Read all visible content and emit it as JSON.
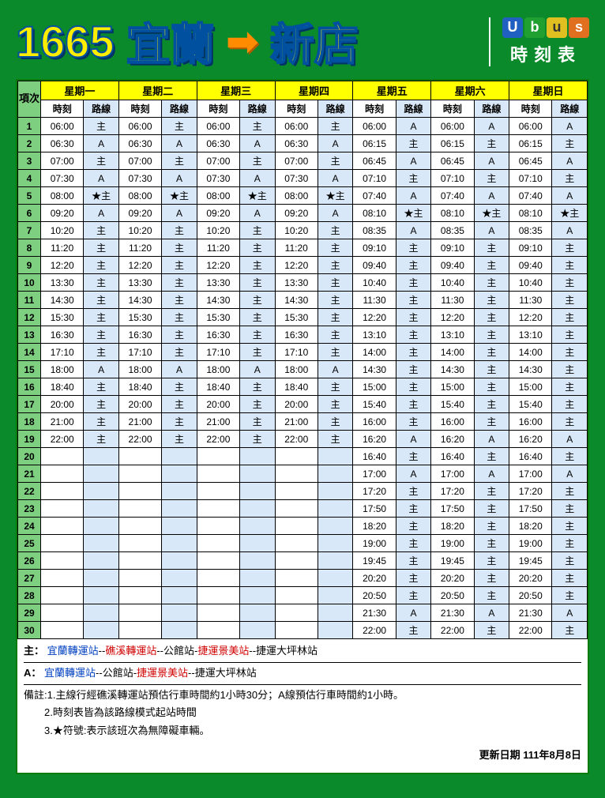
{
  "header": {
    "route_number": "1665",
    "from": "宜蘭",
    "arrow": "➡",
    "to": "新店",
    "logo_letters": [
      "U",
      "b",
      "u",
      "s"
    ],
    "logo_subtitle": "時刻表"
  },
  "table": {
    "index_header": "項次",
    "days": [
      "星期一",
      "星期二",
      "星期三",
      "星期四",
      "星期五",
      "星期六",
      "星期日"
    ],
    "sub_headers": [
      "時刻",
      "路線"
    ],
    "rows": [
      {
        "idx": "1",
        "cells": [
          [
            "06:00",
            "主"
          ],
          [
            "06:00",
            "主"
          ],
          [
            "06:00",
            "主"
          ],
          [
            "06:00",
            "主"
          ],
          [
            "06:00",
            "A"
          ],
          [
            "06:00",
            "A"
          ],
          [
            "06:00",
            "A"
          ]
        ]
      },
      {
        "idx": "2",
        "cells": [
          [
            "06:30",
            "A"
          ],
          [
            "06:30",
            "A"
          ],
          [
            "06:30",
            "A"
          ],
          [
            "06:30",
            "A"
          ],
          [
            "06:15",
            "主"
          ],
          [
            "06:15",
            "主"
          ],
          [
            "06:15",
            "主"
          ]
        ]
      },
      {
        "idx": "3",
        "cells": [
          [
            "07:00",
            "主"
          ],
          [
            "07:00",
            "主"
          ],
          [
            "07:00",
            "主"
          ],
          [
            "07:00",
            "主"
          ],
          [
            "06:45",
            "A"
          ],
          [
            "06:45",
            "A"
          ],
          [
            "06:45",
            "A"
          ]
        ]
      },
      {
        "idx": "4",
        "cells": [
          [
            "07:30",
            "A"
          ],
          [
            "07:30",
            "A"
          ],
          [
            "07:30",
            "A"
          ],
          [
            "07:30",
            "A"
          ],
          [
            "07:10",
            "主"
          ],
          [
            "07:10",
            "主"
          ],
          [
            "07:10",
            "主"
          ]
        ]
      },
      {
        "idx": "5",
        "cells": [
          [
            "08:00",
            "★主"
          ],
          [
            "08:00",
            "★主"
          ],
          [
            "08:00",
            "★主"
          ],
          [
            "08:00",
            "★主"
          ],
          [
            "07:40",
            "A"
          ],
          [
            "07:40",
            "A"
          ],
          [
            "07:40",
            "A"
          ]
        ]
      },
      {
        "idx": "6",
        "cells": [
          [
            "09:20",
            "A"
          ],
          [
            "09:20",
            "A"
          ],
          [
            "09:20",
            "A"
          ],
          [
            "09:20",
            "A"
          ],
          [
            "08:10",
            "★主"
          ],
          [
            "08:10",
            "★主"
          ],
          [
            "08:10",
            "★主"
          ]
        ]
      },
      {
        "idx": "7",
        "cells": [
          [
            "10:20",
            "主"
          ],
          [
            "10:20",
            "主"
          ],
          [
            "10:20",
            "主"
          ],
          [
            "10:20",
            "主"
          ],
          [
            "08:35",
            "A"
          ],
          [
            "08:35",
            "A"
          ],
          [
            "08:35",
            "A"
          ]
        ]
      },
      {
        "idx": "8",
        "cells": [
          [
            "11:20",
            "主"
          ],
          [
            "11:20",
            "主"
          ],
          [
            "11:20",
            "主"
          ],
          [
            "11:20",
            "主"
          ],
          [
            "09:10",
            "主"
          ],
          [
            "09:10",
            "主"
          ],
          [
            "09:10",
            "主"
          ]
        ]
      },
      {
        "idx": "9",
        "cells": [
          [
            "12:20",
            "主"
          ],
          [
            "12:20",
            "主"
          ],
          [
            "12:20",
            "主"
          ],
          [
            "12:20",
            "主"
          ],
          [
            "09:40",
            "主"
          ],
          [
            "09:40",
            "主"
          ],
          [
            "09:40",
            "主"
          ]
        ]
      },
      {
        "idx": "10",
        "cells": [
          [
            "13:30",
            "主"
          ],
          [
            "13:30",
            "主"
          ],
          [
            "13:30",
            "主"
          ],
          [
            "13:30",
            "主"
          ],
          [
            "10:40",
            "主"
          ],
          [
            "10:40",
            "主"
          ],
          [
            "10:40",
            "主"
          ]
        ]
      },
      {
        "idx": "11",
        "cells": [
          [
            "14:30",
            "主"
          ],
          [
            "14:30",
            "主"
          ],
          [
            "14:30",
            "主"
          ],
          [
            "14:30",
            "主"
          ],
          [
            "11:30",
            "主"
          ],
          [
            "11:30",
            "主"
          ],
          [
            "11:30",
            "主"
          ]
        ]
      },
      {
        "idx": "12",
        "cells": [
          [
            "15:30",
            "主"
          ],
          [
            "15:30",
            "主"
          ],
          [
            "15:30",
            "主"
          ],
          [
            "15:30",
            "主"
          ],
          [
            "12:20",
            "主"
          ],
          [
            "12:20",
            "主"
          ],
          [
            "12:20",
            "主"
          ]
        ]
      },
      {
        "idx": "13",
        "cells": [
          [
            "16:30",
            "主"
          ],
          [
            "16:30",
            "主"
          ],
          [
            "16:30",
            "主"
          ],
          [
            "16:30",
            "主"
          ],
          [
            "13:10",
            "主"
          ],
          [
            "13:10",
            "主"
          ],
          [
            "13:10",
            "主"
          ]
        ]
      },
      {
        "idx": "14",
        "cells": [
          [
            "17:10",
            "主"
          ],
          [
            "17:10",
            "主"
          ],
          [
            "17:10",
            "主"
          ],
          [
            "17:10",
            "主"
          ],
          [
            "14:00",
            "主"
          ],
          [
            "14:00",
            "主"
          ],
          [
            "14:00",
            "主"
          ]
        ]
      },
      {
        "idx": "15",
        "cells": [
          [
            "18:00",
            "A"
          ],
          [
            "18:00",
            "A"
          ],
          [
            "18:00",
            "A"
          ],
          [
            "18:00",
            "A"
          ],
          [
            "14:30",
            "主"
          ],
          [
            "14:30",
            "主"
          ],
          [
            "14:30",
            "主"
          ]
        ]
      },
      {
        "idx": "16",
        "cells": [
          [
            "18:40",
            "主"
          ],
          [
            "18:40",
            "主"
          ],
          [
            "18:40",
            "主"
          ],
          [
            "18:40",
            "主"
          ],
          [
            "15:00",
            "主"
          ],
          [
            "15:00",
            "主"
          ],
          [
            "15:00",
            "主"
          ]
        ]
      },
      {
        "idx": "17",
        "cells": [
          [
            "20:00",
            "主"
          ],
          [
            "20:00",
            "主"
          ],
          [
            "20:00",
            "主"
          ],
          [
            "20:00",
            "主"
          ],
          [
            "15:40",
            "主"
          ],
          [
            "15:40",
            "主"
          ],
          [
            "15:40",
            "主"
          ]
        ]
      },
      {
        "idx": "18",
        "cells": [
          [
            "21:00",
            "主"
          ],
          [
            "21:00",
            "主"
          ],
          [
            "21:00",
            "主"
          ],
          [
            "21:00",
            "主"
          ],
          [
            "16:00",
            "主"
          ],
          [
            "16:00",
            "主"
          ],
          [
            "16:00",
            "主"
          ]
        ]
      },
      {
        "idx": "19",
        "cells": [
          [
            "22:00",
            "主"
          ],
          [
            "22:00",
            "主"
          ],
          [
            "22:00",
            "主"
          ],
          [
            "22:00",
            "主"
          ],
          [
            "16:20",
            "A"
          ],
          [
            "16:20",
            "A"
          ],
          [
            "16:20",
            "A"
          ]
        ]
      },
      {
        "idx": "20",
        "cells": [
          [
            "",
            ""
          ],
          [
            "",
            ""
          ],
          [
            "",
            ""
          ],
          [
            "",
            ""
          ],
          [
            "16:40",
            "主"
          ],
          [
            "16:40",
            "主"
          ],
          [
            "16:40",
            "主"
          ]
        ]
      },
      {
        "idx": "21",
        "cells": [
          [
            "",
            ""
          ],
          [
            "",
            ""
          ],
          [
            "",
            ""
          ],
          [
            "",
            ""
          ],
          [
            "17:00",
            "A"
          ],
          [
            "17:00",
            "A"
          ],
          [
            "17:00",
            "A"
          ]
        ]
      },
      {
        "idx": "22",
        "cells": [
          [
            "",
            ""
          ],
          [
            "",
            ""
          ],
          [
            "",
            ""
          ],
          [
            "",
            ""
          ],
          [
            "17:20",
            "主"
          ],
          [
            "17:20",
            "主"
          ],
          [
            "17:20",
            "主"
          ]
        ]
      },
      {
        "idx": "23",
        "cells": [
          [
            "",
            ""
          ],
          [
            "",
            ""
          ],
          [
            "",
            ""
          ],
          [
            "",
            ""
          ],
          [
            "17:50",
            "主"
          ],
          [
            "17:50",
            "主"
          ],
          [
            "17:50",
            "主"
          ]
        ]
      },
      {
        "idx": "24",
        "cells": [
          [
            "",
            ""
          ],
          [
            "",
            ""
          ],
          [
            "",
            ""
          ],
          [
            "",
            ""
          ],
          [
            "18:20",
            "主"
          ],
          [
            "18:20",
            "主"
          ],
          [
            "18:20",
            "主"
          ]
        ]
      },
      {
        "idx": "25",
        "cells": [
          [
            "",
            ""
          ],
          [
            "",
            ""
          ],
          [
            "",
            ""
          ],
          [
            "",
            ""
          ],
          [
            "19:00",
            "主"
          ],
          [
            "19:00",
            "主"
          ],
          [
            "19:00",
            "主"
          ]
        ]
      },
      {
        "idx": "26",
        "cells": [
          [
            "",
            ""
          ],
          [
            "",
            ""
          ],
          [
            "",
            ""
          ],
          [
            "",
            ""
          ],
          [
            "19:45",
            "主"
          ],
          [
            "19:45",
            "主"
          ],
          [
            "19:45",
            "主"
          ]
        ]
      },
      {
        "idx": "27",
        "cells": [
          [
            "",
            ""
          ],
          [
            "",
            ""
          ],
          [
            "",
            ""
          ],
          [
            "",
            ""
          ],
          [
            "20:20",
            "主"
          ],
          [
            "20:20",
            "主"
          ],
          [
            "20:20",
            "主"
          ]
        ]
      },
      {
        "idx": "28",
        "cells": [
          [
            "",
            ""
          ],
          [
            "",
            ""
          ],
          [
            "",
            ""
          ],
          [
            "",
            ""
          ],
          [
            "20:50",
            "主"
          ],
          [
            "20:50",
            "主"
          ],
          [
            "20:50",
            "主"
          ]
        ]
      },
      {
        "idx": "29",
        "cells": [
          [
            "",
            ""
          ],
          [
            "",
            ""
          ],
          [
            "",
            ""
          ],
          [
            "",
            ""
          ],
          [
            "21:30",
            "A"
          ],
          [
            "21:30",
            "A"
          ],
          [
            "21:30",
            "A"
          ]
        ]
      },
      {
        "idx": "30",
        "cells": [
          [
            "",
            ""
          ],
          [
            "",
            ""
          ],
          [
            "",
            ""
          ],
          [
            "",
            ""
          ],
          [
            "22:00",
            "主"
          ],
          [
            "22:00",
            "主"
          ],
          [
            "22:00",
            "主"
          ]
        ]
      }
    ]
  },
  "notes": {
    "main_label": "主：",
    "main_parts": [
      {
        "text": "宜蘭轉運站",
        "color": "#0040c0"
      },
      {
        "text": "--",
        "color": "#000"
      },
      {
        "text": "礁溪轉運站",
        "color": "#d00000"
      },
      {
        "text": "--公館站-",
        "color": "#000"
      },
      {
        "text": "捷運景美站",
        "color": "#d00000"
      },
      {
        "text": "--捷運大坪林站",
        "color": "#000"
      }
    ],
    "a_label": "A：",
    "a_parts": [
      {
        "text": "宜蘭轉運站",
        "color": "#0040c0"
      },
      {
        "text": "--公館站-",
        "color": "#000"
      },
      {
        "text": "捷運景美站",
        "color": "#d00000"
      },
      {
        "text": "--捷運大坪林站",
        "color": "#000"
      }
    ],
    "remarks": [
      "備註:1.主線行經礁溪轉運站預估行車時間約1小時30分；A線預估行車時間約1小時。",
      "　　2.時刻表皆為該路線模式起站時間",
      "　　3.★符號:表示該班次為無障礙車輛。"
    ],
    "update": "更新日期 111年8月8日"
  },
  "style": {
    "bg": "#0a8a2a",
    "header_green": "#7ed080",
    "header_yellow": "#ffff00",
    "route_bg": "#d8e8f8"
  }
}
